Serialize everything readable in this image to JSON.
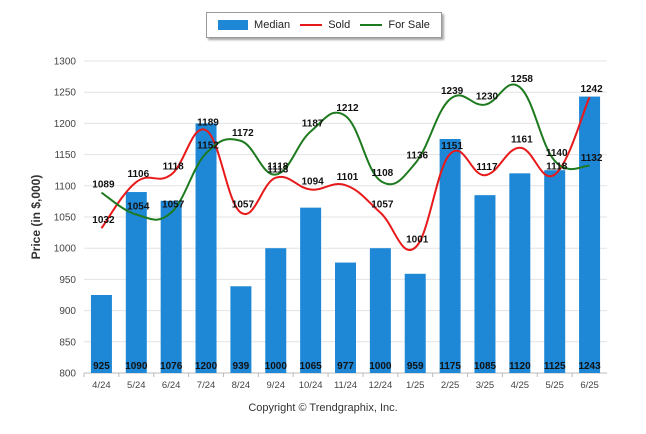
{
  "chart_data": {
    "type": "bar",
    "categories": [
      "4/24",
      "5/24",
      "6/24",
      "7/24",
      "8/24",
      "9/24",
      "10/24",
      "11/24",
      "12/24",
      "1/25",
      "2/25",
      "3/25",
      "4/25",
      "5/25",
      "6/25"
    ],
    "ylabel": "Price (in $,000)",
    "ylim": [
      800,
      1300
    ],
    "yticks": [
      800,
      850,
      900,
      950,
      1000,
      1050,
      1100,
      1150,
      1200,
      1250,
      1300
    ],
    "grid": true,
    "legend_position": "top-center",
    "series": [
      {
        "name": "Median",
        "kind": "bar",
        "color": "#1f88d6",
        "values": [
          925,
          1090,
          1076,
          1200,
          939,
          1000,
          1065,
          977,
          1000,
          959,
          1175,
          1085,
          1120,
          1125,
          1243
        ]
      },
      {
        "name": "Sold",
        "kind": "line",
        "color": "#e8191a",
        "values": [
          1032,
          1106,
          1118,
          1189,
          1057,
          1113,
          1094,
          1101,
          1057,
          1001,
          1151,
          1117,
          1161,
          1118,
          1242
        ]
      },
      {
        "name": "For Sale",
        "kind": "line",
        "color": "#1e7a1e",
        "values": [
          1089,
          1054,
          1057,
          1152,
          1172,
          1118,
          1187,
          1212,
          1108,
          1136,
          1239,
          1230,
          1258,
          1140,
          1132
        ]
      }
    ]
  },
  "copyright": "Copyright © Trendgraphix, Inc."
}
